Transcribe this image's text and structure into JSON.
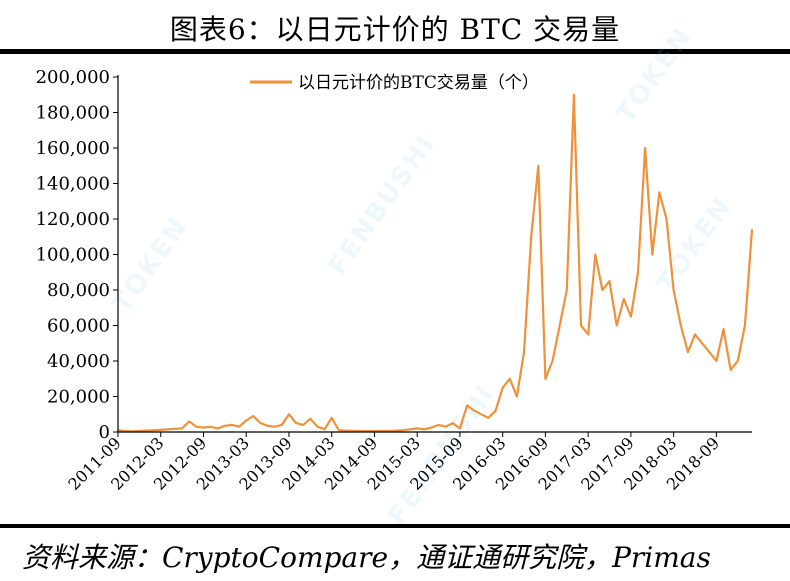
{
  "header": {
    "title": "图表6：以日元计价的 BTC 交易量"
  },
  "footer": {
    "source": "资料来源：CryptoCompare，通证通研究院，Primas"
  },
  "watermarks": [
    "FENBUSHI",
    "TOKEN",
    "TOKEN",
    "FENBUSHI",
    "TOKEN"
  ],
  "chart_data": {
    "type": "line",
    "title": "",
    "xlabel": "",
    "ylabel": "",
    "ylim": [
      0,
      200000
    ],
    "yticks": [
      "200,000",
      "180,000",
      "160,000",
      "140,000",
      "120,000",
      "100,000",
      "80,000",
      "60,000",
      "40,000",
      "20,000",
      "0"
    ],
    "xticks": [
      "2011-09",
      "2012-03",
      "2012-09",
      "2013-03",
      "2013-09",
      "2014-03",
      "2014-09",
      "2015-03",
      "2015-09",
      "2016-03",
      "2016-09",
      "2017-03",
      "2017-09",
      "2018-03",
      "2018-09"
    ],
    "x_range": [
      "2011-09",
      "2019-02"
    ],
    "legend": {
      "position": "top-center"
    },
    "grid": false,
    "series": [
      {
        "name": "以日元计价的BTC交易量（个）",
        "color": "#F0913A",
        "x": [
          "2011-09",
          "2011-10",
          "2011-11",
          "2011-12",
          "2012-01",
          "2012-02",
          "2012-03",
          "2012-04",
          "2012-05",
          "2012-06",
          "2012-07",
          "2012-08",
          "2012-09",
          "2012-10",
          "2012-11",
          "2012-12",
          "2013-01",
          "2013-02",
          "2013-03",
          "2013-04",
          "2013-05",
          "2013-06",
          "2013-07",
          "2013-08",
          "2013-09",
          "2013-10",
          "2013-11",
          "2013-12",
          "2014-01",
          "2014-02",
          "2014-03",
          "2014-04",
          "2014-05",
          "2014-06",
          "2014-07",
          "2014-08",
          "2014-09",
          "2014-10",
          "2014-11",
          "2014-12",
          "2015-01",
          "2015-02",
          "2015-03",
          "2015-04",
          "2015-05",
          "2015-06",
          "2015-07",
          "2015-08",
          "2015-09",
          "2015-10",
          "2015-11",
          "2015-12",
          "2016-01",
          "2016-02",
          "2016-03",
          "2016-04",
          "2016-05",
          "2016-06",
          "2016-07",
          "2016-08",
          "2016-09",
          "2016-10",
          "2016-11",
          "2016-12",
          "2017-01",
          "2017-02",
          "2017-03",
          "2017-04",
          "2017-05",
          "2017-06",
          "2017-07",
          "2017-08",
          "2017-09",
          "2017-10",
          "2017-11",
          "2017-12",
          "2018-01",
          "2018-02",
          "2018-03",
          "2018-04",
          "2018-05",
          "2018-06",
          "2018-07",
          "2018-08",
          "2018-09",
          "2018-10",
          "2018-11",
          "2018-12",
          "2019-01",
          "2019-02"
        ],
        "values": [
          1000,
          500,
          400,
          600,
          800,
          1000,
          1200,
          1500,
          1800,
          2000,
          6000,
          3000,
          2500,
          3000,
          2000,
          3500,
          4000,
          3000,
          6500,
          9000,
          5000,
          3500,
          3000,
          4000,
          10000,
          5000,
          4000,
          7500,
          3000,
          1500,
          8000,
          1000,
          800,
          600,
          500,
          500,
          500,
          600,
          500,
          800,
          1000,
          1500,
          2000,
          1500,
          2500,
          4000,
          3000,
          5000,
          2000,
          15000,
          12000,
          10000,
          8000,
          12000,
          25000,
          30000,
          20000,
          45000,
          110000,
          150000,
          30000,
          40000,
          60000,
          80000,
          190000,
          60000,
          55000,
          100000,
          80000,
          85000,
          60000,
          75000,
          65000,
          90000,
          160000,
          100000,
          135000,
          120000,
          80000,
          60000,
          45000,
          55000,
          50000,
          45000,
          40000,
          58000,
          35000,
          40000,
          60000,
          114000
        ]
      }
    ]
  }
}
